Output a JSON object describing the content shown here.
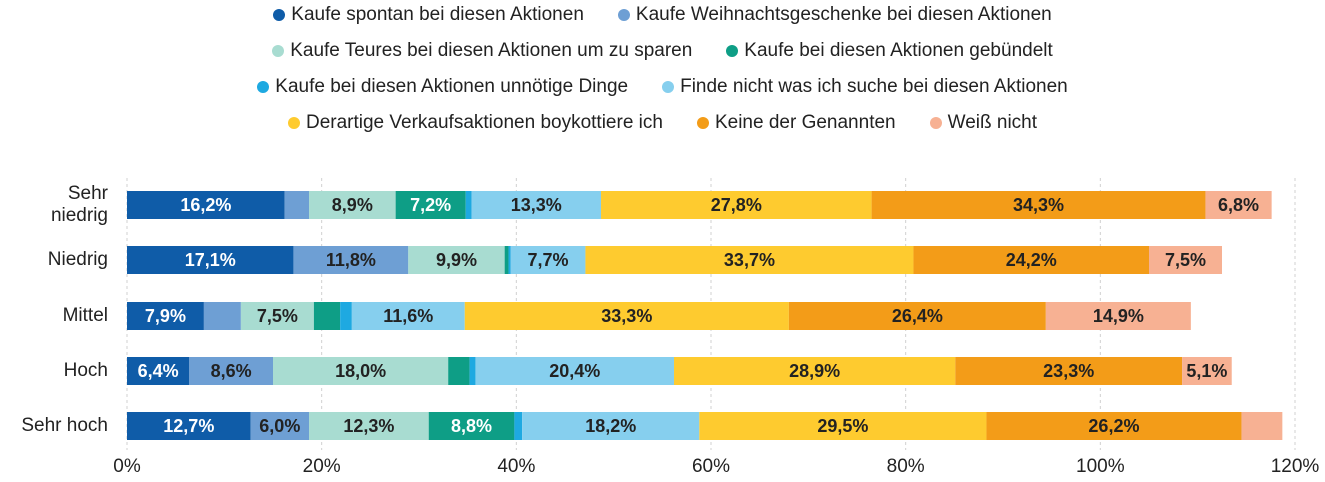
{
  "chart_data": {
    "type": "stacked-bar-horizontal",
    "categories": [
      "Sehr niedrig",
      "Niedrig",
      "Mittel",
      "Hoch",
      "Sehr hoch"
    ],
    "series": [
      {
        "name": "Kaufe spontan bei diesen Aktionen",
        "color": "#0f5ca8",
        "values": [
          16.2,
          17.1,
          7.9,
          6.4,
          12.7
        ],
        "value_labels": [
          "16,2%",
          "17,1%",
          "7,9%",
          "6,4%",
          "12,7%"
        ]
      },
      {
        "name": "Kaufe Weihnachtsgeschenke bei diesen Aktionen",
        "color": "#6e9fd4",
        "values": [
          2.5,
          11.8,
          3.8,
          8.6,
          6.0
        ],
        "value_labels": [
          null,
          "11,8%",
          null,
          "8,6%",
          "6,0%"
        ]
      },
      {
        "name": "Kaufe Teures bei diesen Aktionen um zu sparen",
        "color": "#a8dcd1",
        "values": [
          8.9,
          9.9,
          7.5,
          18.0,
          12.3
        ],
        "value_labels": [
          "8,9%",
          "9,9%",
          "7,5%",
          "18,0%",
          "12,3%"
        ]
      },
      {
        "name": "Kaufe bei diesen Aktionen gebündelt",
        "color": "#0e9e86",
        "values": [
          7.2,
          0.4,
          2.7,
          2.2,
          8.8
        ],
        "value_labels": [
          "7,2%",
          null,
          null,
          null,
          "8,8%"
        ]
      },
      {
        "name": "Kaufe bei diesen Aktionen unnötige Dinge",
        "color": "#1ea9e1",
        "values": [
          0.6,
          0.2,
          1.2,
          0.6,
          0.8
        ],
        "value_labels": [
          null,
          null,
          null,
          null,
          null
        ]
      },
      {
        "name": "Finde nicht was ich suche bei diesen Aktionen",
        "color": "#86cfee",
        "values": [
          13.3,
          7.7,
          11.6,
          20.4,
          18.2
        ],
        "value_labels": [
          "13,3%",
          "7,7%",
          "11,6%",
          "20,4%",
          "18,2%"
        ]
      },
      {
        "name": "Derartige Verkaufsaktionen boykottiere ich",
        "color": "#fecb2f",
        "values": [
          27.8,
          33.7,
          33.3,
          28.9,
          29.5
        ],
        "value_labels": [
          "27,8%",
          "33,7%",
          "33,3%",
          "28,9%",
          "29,5%"
        ]
      },
      {
        "name": "Keine der Genannten",
        "color": "#f39c18",
        "values": [
          34.3,
          24.2,
          26.4,
          23.3,
          26.2
        ],
        "value_labels": [
          "34,3%",
          "24,2%",
          "26,4%",
          "23,3%",
          "26,2%"
        ]
      },
      {
        "name": "Weiß nicht",
        "color": "#f7b193",
        "values": [
          6.8,
          7.5,
          14.9,
          5.1,
          4.2
        ],
        "value_labels": [
          "6,8%",
          "7,5%",
          "14,9%",
          "5,1%",
          null
        ]
      }
    ],
    "xlim": [
      0,
      120
    ],
    "xticks": [
      {
        "value": 0,
        "label": "0%"
      },
      {
        "value": 20,
        "label": "20%"
      },
      {
        "value": 40,
        "label": "40%"
      },
      {
        "value": 60,
        "label": "60%"
      },
      {
        "value": 80,
        "label": "80%"
      },
      {
        "value": 100,
        "label": "100%"
      },
      {
        "value": 120,
        "label": "120%"
      }
    ],
    "grid": true,
    "legend": "top"
  }
}
